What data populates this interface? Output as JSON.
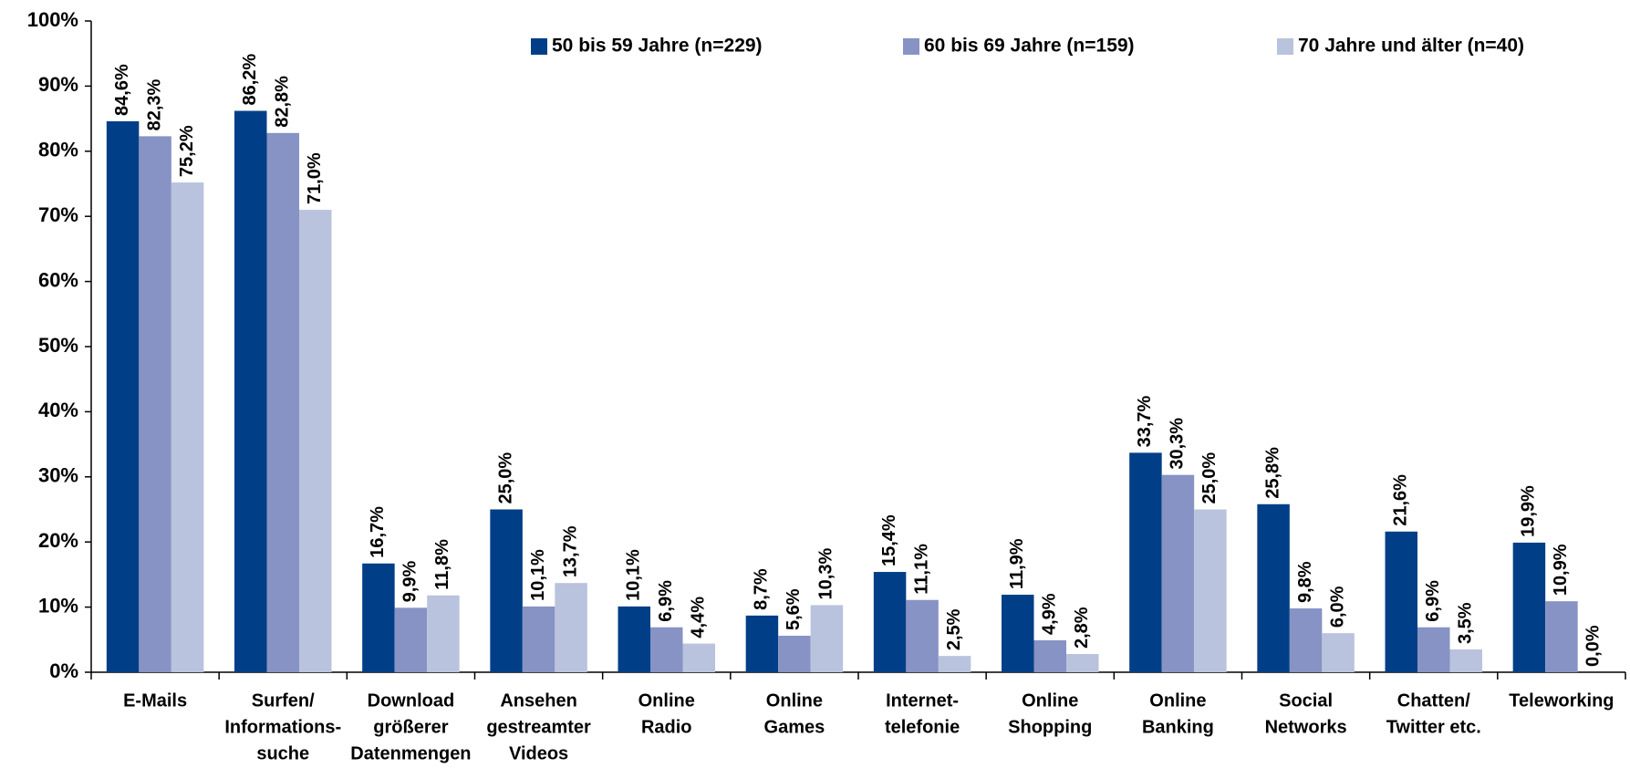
{
  "chart_data": {
    "type": "bar",
    "categories": [
      [
        "E-Mails"
      ],
      [
        "Surfen/",
        "Informations-",
        "suche"
      ],
      [
        "Download",
        "größerer",
        "Datenmengen"
      ],
      [
        "Ansehen",
        "gestreamter",
        "Videos"
      ],
      [
        "Online",
        "Radio"
      ],
      [
        "Online",
        "Games"
      ],
      [
        "Internet-",
        "telefonie"
      ],
      [
        "Online",
        "Shopping"
      ],
      [
        "Online",
        "Banking"
      ],
      [
        "Social",
        "Networks"
      ],
      [
        "Chatten/",
        "Twitter etc."
      ],
      [
        "Teleworking"
      ]
    ],
    "series": [
      {
        "name": "50 bis 59 Jahre (n=229)",
        "color": "#003f87",
        "values": [
          84.6,
          86.2,
          16.7,
          25.0,
          10.1,
          8.7,
          15.4,
          11.9,
          33.7,
          25.8,
          21.6,
          19.9
        ],
        "value_labels": [
          "84,6%",
          "86,2%",
          "16,7%",
          "25,0%",
          "10,1%",
          "8,7%",
          "15,4%",
          "11,9%",
          "33,7%",
          "25,8%",
          "21,6%",
          "19,9%"
        ]
      },
      {
        "name": "60 bis 69 Jahre  (n=159)",
        "color": "#8793c4",
        "values": [
          82.3,
          82.8,
          9.9,
          10.1,
          6.9,
          5.6,
          11.1,
          4.9,
          30.3,
          9.8,
          6.9,
          10.9
        ],
        "value_labels": [
          "82,3%",
          "82,8%",
          "9,9%",
          "10,1%",
          "6,9%",
          "5,6%",
          "11,1%",
          "4,9%",
          "30,3%",
          "9,8%",
          "6,9%",
          "10,9%"
        ]
      },
      {
        "name": "70 Jahre und älter  (n=40)",
        "color": "#b9c3de",
        "values": [
          75.2,
          71.0,
          11.8,
          13.7,
          4.4,
          10.3,
          2.5,
          2.8,
          25.0,
          6.0,
          3.5,
          0.0
        ],
        "value_labels": [
          "75,2%",
          "71,0%",
          "11,8%",
          "13,7%",
          "4,4%",
          "10,3%",
          "2,5%",
          "2,8%",
          "25,0%",
          "6,0%",
          "3,5%",
          "0,0%"
        ]
      }
    ],
    "ylim": [
      0,
      100
    ],
    "yticks": [
      {
        "value": 0,
        "label": "0%"
      },
      {
        "value": 10,
        "label": "10%"
      },
      {
        "value": 20,
        "label": "20%"
      },
      {
        "value": 30,
        "label": "30%"
      },
      {
        "value": 40,
        "label": "40%"
      },
      {
        "value": 50,
        "label": "50%"
      },
      {
        "value": 60,
        "label": "60%"
      },
      {
        "value": 70,
        "label": "70%"
      },
      {
        "value": 80,
        "label": "80%"
      },
      {
        "value": 90,
        "label": "90%"
      },
      {
        "value": 100,
        "label": "100%"
      }
    ],
    "grid": false,
    "legend": "top"
  }
}
